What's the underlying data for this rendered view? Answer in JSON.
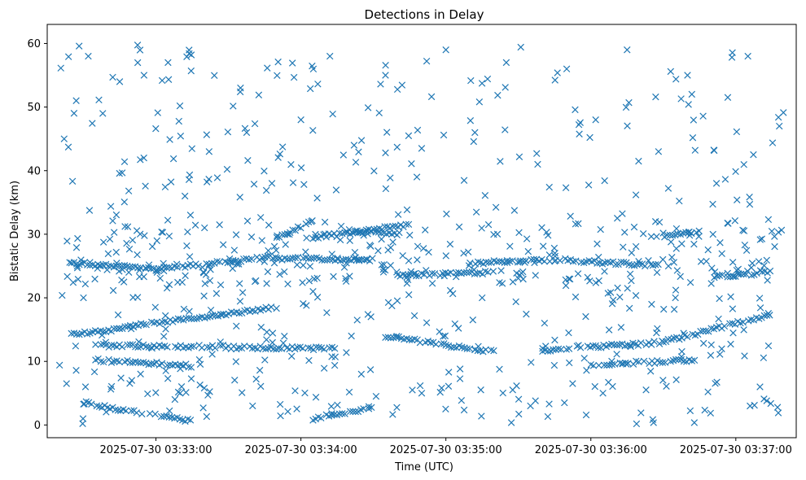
{
  "chart_data": {
    "type": "scatter",
    "title": "Detections in Delay",
    "xlabel": "Time (UTC)",
    "ylabel": "Bistatic Delay (km)",
    "marker": "x",
    "color": "#1f77b4",
    "grid": false,
    "xlim": [
      "2025-07-30 03:32:15",
      "2025-07-30 03:37:25"
    ],
    "ylim": [
      -2,
      63
    ],
    "xticks": [
      "2025-07-30 03:33:00",
      "2025-07-30 03:34:00",
      "2025-07-30 03:35:00",
      "2025-07-30 03:36:00",
      "2025-07-30 03:37:00"
    ],
    "yticks": [
      0,
      10,
      20,
      30,
      40,
      50,
      60
    ],
    "tracks": [
      {
        "start": "2025-07-30 03:32:30",
        "end": "2025-07-30 03:33:00",
        "delay_start": 3.5,
        "delay_end": 1.5
      },
      {
        "start": "2025-07-30 03:33:00",
        "end": "2025-07-30 03:33:15",
        "delay_start": 1.5,
        "delay_end": 0.6
      },
      {
        "start": "2025-07-30 03:32:25",
        "end": "2025-07-30 03:32:45",
        "delay_start": 14.2,
        "delay_end": 15.0
      },
      {
        "start": "2025-07-30 03:32:45",
        "end": "2025-07-30 03:33:50",
        "delay_start": 15.3,
        "delay_end": 18.5
      },
      {
        "start": "2025-07-30 03:32:35",
        "end": "2025-07-30 03:33:15",
        "delay_start": 10.2,
        "delay_end": 9.3
      },
      {
        "start": "2025-07-30 03:32:35",
        "end": "2025-07-30 03:33:30",
        "delay_start": 12.5,
        "delay_end": 12.3
      },
      {
        "start": "2025-07-30 03:33:30",
        "end": "2025-07-30 03:34:15",
        "delay_start": 12.2,
        "delay_end": 12.0
      },
      {
        "start": "2025-07-30 03:32:25",
        "end": "2025-07-30 03:33:00",
        "delay_start": 25.5,
        "delay_end": 24.5
      },
      {
        "start": "2025-07-30 03:33:00",
        "end": "2025-07-30 03:33:50",
        "delay_start": 24.5,
        "delay_end": 26.5
      },
      {
        "start": "2025-07-30 03:33:50",
        "end": "2025-07-30 03:34:30",
        "delay_start": 26.2,
        "delay_end": 26.0
      },
      {
        "start": "2025-07-30 03:33:50",
        "end": "2025-07-30 03:34:05",
        "delay_start": 29.5,
        "delay_end": 32.0
      },
      {
        "start": "2025-07-30 03:34:05",
        "end": "2025-07-30 03:34:45",
        "delay_start": 29.5,
        "delay_end": 31.5
      },
      {
        "start": "2025-07-30 03:34:05",
        "end": "2025-07-30 03:34:30",
        "delay_start": 1.0,
        "delay_end": 2.8
      },
      {
        "start": "2025-07-30 03:34:35",
        "end": "2025-07-30 03:35:00",
        "delay_start": 14.0,
        "delay_end": 12.5
      },
      {
        "start": "2025-07-30 03:35:00",
        "end": "2025-07-30 03:35:20",
        "delay_start": 12.5,
        "delay_end": 11.5
      },
      {
        "start": "2025-07-30 03:34:40",
        "end": "2025-07-30 03:35:20",
        "delay_start": 23.5,
        "delay_end": 24.0
      },
      {
        "start": "2025-07-30 03:34:20",
        "end": "2025-07-30 03:34:40",
        "delay_start": 30.5,
        "delay_end": 30.0
      },
      {
        "start": "2025-07-30 03:35:10",
        "end": "2025-07-30 03:35:45",
        "delay_start": 25.5,
        "delay_end": 26.0
      },
      {
        "start": "2025-07-30 03:35:45",
        "end": "2025-07-30 03:36:30",
        "delay_start": 26.0,
        "delay_end": 25.0
      },
      {
        "start": "2025-07-30 03:35:40",
        "end": "2025-07-30 03:36:30",
        "delay_start": 11.8,
        "delay_end": 13.0
      },
      {
        "start": "2025-07-30 03:36:30",
        "end": "2025-07-30 03:37:15",
        "delay_start": 13.0,
        "delay_end": 17.5
      },
      {
        "start": "2025-07-30 03:36:00",
        "end": "2025-07-30 03:36:45",
        "delay_start": 9.5,
        "delay_end": 10.2
      },
      {
        "start": "2025-07-30 03:36:25",
        "end": "2025-07-30 03:36:45",
        "delay_start": 29.5,
        "delay_end": 30.5
      },
      {
        "start": "2025-07-30 03:36:50",
        "end": "2025-07-30 03:37:15",
        "delay_start": 23.3,
        "delay_end": 24.0
      }
    ],
    "scattered_points": [
      [
        "2025-07-30 03:32:22",
        45
      ],
      [
        "2025-07-30 03:32:27",
        51
      ],
      [
        "2025-07-30 03:32:32",
        58
      ],
      [
        "2025-07-30 03:32:38",
        49
      ],
      [
        "2025-07-30 03:32:45",
        54
      ],
      [
        "2025-07-30 03:32:55",
        42
      ],
      [
        "2025-07-30 03:33:05",
        57
      ],
      [
        "2025-07-30 03:33:12",
        36
      ],
      [
        "2025-07-30 03:33:22",
        43
      ],
      [
        "2025-07-30 03:33:35",
        53
      ],
      [
        "2025-07-30 03:33:48",
        38
      ],
      [
        "2025-07-30 03:34:00",
        48
      ],
      [
        "2025-07-30 03:34:12",
        58
      ],
      [
        "2025-07-30 03:34:22",
        44
      ],
      [
        "2025-07-30 03:34:35",
        55
      ],
      [
        "2025-07-30 03:34:48",
        39
      ],
      [
        "2025-07-30 03:35:00",
        59
      ],
      [
        "2025-07-30 03:35:12",
        46
      ],
      [
        "2025-07-30 03:35:25",
        57
      ],
      [
        "2025-07-30 03:35:38",
        41
      ],
      [
        "2025-07-30 03:35:50",
        56
      ],
      [
        "2025-07-30 03:36:02",
        48
      ],
      [
        "2025-07-30 03:36:15",
        59
      ],
      [
        "2025-07-30 03:36:28",
        43
      ],
      [
        "2025-07-30 03:36:40",
        55
      ],
      [
        "2025-07-30 03:36:52",
        38
      ],
      [
        "2025-07-30 03:37:05",
        58
      ],
      [
        "2025-07-30 03:37:18",
        47
      ],
      [
        "2025-07-30 03:32:30",
        20
      ],
      [
        "2025-07-30 03:32:50",
        7
      ],
      [
        "2025-07-30 03:33:10",
        5
      ],
      [
        "2025-07-30 03:33:40",
        3
      ],
      [
        "2025-07-30 03:34:05",
        21
      ],
      [
        "2025-07-30 03:34:25",
        8
      ],
      [
        "2025-07-30 03:34:50",
        5
      ],
      [
        "2025-07-30 03:35:15",
        20
      ],
      [
        "2025-07-30 03:35:35",
        3
      ],
      [
        "2025-07-30 03:36:05",
        5
      ],
      [
        "2025-07-30 03:36:35",
        20
      ],
      [
        "2025-07-30 03:37:10",
        6
      ]
    ]
  }
}
